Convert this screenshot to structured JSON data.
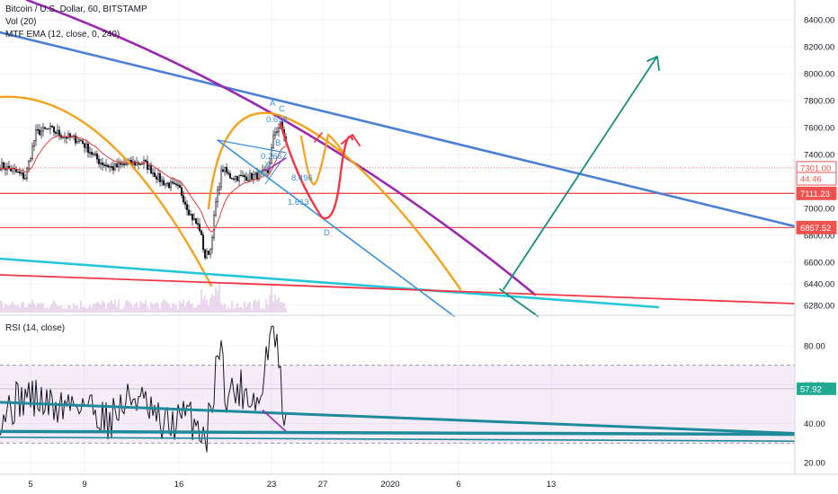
{
  "chart_data": [
    {
      "type": "line",
      "symbol": "Bitcoin / U.S. Dollar, 60, BITSTAMP",
      "indicators": [
        "Vol (20)",
        "MTF EMA (12, close, 0, 240)"
      ],
      "ylim": [
        6200,
        8550
      ],
      "y_ticks": [
        6280,
        6440,
        6600,
        6800,
        7000,
        7200,
        7400,
        7600,
        7800,
        8000,
        8200,
        8400
      ],
      "y_tick_labels": [
        "6280.00",
        "6440.00",
        "6600.00",
        "6800.00",
        "7000.00",
        "7200.00",
        "7400.00",
        "7600.00",
        "7800.00",
        "8000.00",
        "8200.00",
        "8400.00"
      ],
      "horizontal_levels": [
        {
          "value": 7301.0,
          "label": "7301.00",
          "color": "#ef5350",
          "style": "dotted"
        },
        {
          "value": 7111.23,
          "label": "7111.23",
          "color": "#ef5350",
          "style": "solid"
        },
        {
          "value": 6857.52,
          "label": "6857.52",
          "color": "#ef5350",
          "style": "solid"
        }
      ],
      "countdown_label": "44:46",
      "pattern_points": [
        "X",
        "A",
        "B",
        "C",
        "D"
      ],
      "fib_labels": [
        "0.618",
        "0.266",
        "8.496",
        "1.613"
      ],
      "colors": {
        "candle": "#131722",
        "ema": "#e53935",
        "trend_blue": "#4a7fd4",
        "arc_orange": "#f5a11c",
        "arc_purple": "#9c27b0",
        "projection_red": "#f23645",
        "cyan": "#26c6da",
        "arrow_green": "#138f7e"
      }
    },
    {
      "type": "line",
      "title": "RSI (14, close)",
      "ylim": [
        14,
        94
      ],
      "y_ticks": [
        20,
        40,
        60,
        80
      ],
      "y_tick_labels": [
        "20.00",
        "40.00",
        "60.00",
        "80.00"
      ],
      "band": [
        30,
        70
      ],
      "current_value": 57.92,
      "current_label": "57.92"
    }
  ],
  "x_axis": {
    "tick_labels": [
      "5",
      "9",
      "16",
      "23",
      "27",
      "2020",
      "6",
      "13"
    ]
  }
}
